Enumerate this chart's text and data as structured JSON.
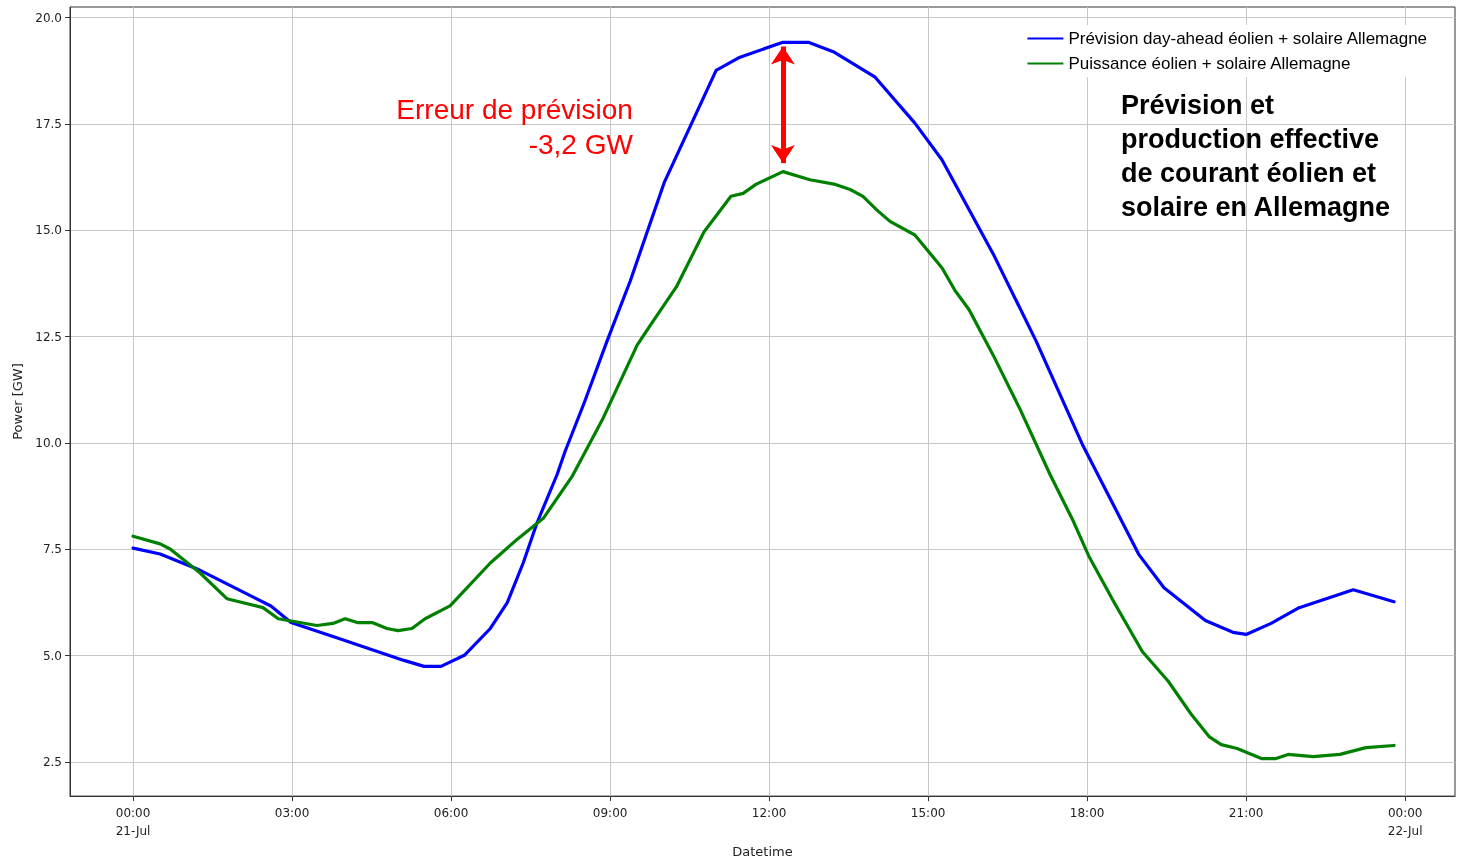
{
  "chart_data": {
    "type": "line",
    "title": "Prévision et production effective de courant éolien et solaire en Allemagne",
    "xlabel": "Datetime",
    "ylabel": "Power [GW]",
    "xlim": [
      -1.19,
      24.94
    ],
    "xticks": [
      {
        "value": 0,
        "label": "00:00\n21-Jul"
      },
      {
        "value": 3,
        "label": "03:00"
      },
      {
        "value": 6,
        "label": "06:00"
      },
      {
        "value": 9,
        "label": "09:00"
      },
      {
        "value": 12,
        "label": "12:00"
      },
      {
        "value": 15,
        "label": "15:00"
      },
      {
        "value": 18,
        "label": "18:00"
      },
      {
        "value": 21,
        "label": "21:00"
      },
      {
        "value": 24,
        "label": "00:00\n22-Jul"
      }
    ],
    "ylim": [
      1.7,
      20.25
    ],
    "yticks": [
      2.5,
      {
        "value": 5,
        "label": "5.0"
      },
      7.5,
      {
        "value": 10,
        "label": "10.0"
      },
      12.5,
      {
        "value": 15,
        "label": "15.0"
      },
      17.5,
      {
        "value": 20,
        "label": "20.0"
      }
    ],
    "grid": true,
    "legend": "top right",
    "marker": "none",
    "line_style": "solid",
    "annotations": [
      "Erreur de prévision\n-3,2 GW"
    ],
    "series": [
      {
        "name": "Prévision day-ahead éolien + solaire Allemagne",
        "color": "#0000ff",
        "x": [
          0,
          0.51,
          1.21,
          2.6,
          2.98,
          3.87,
          5.11,
          5.49,
          5.81,
          6.25,
          6.74,
          7.06,
          7.36,
          7.62,
          8.0,
          8.15,
          8.51,
          8.94,
          9.38,
          10.02,
          11.0,
          11.45,
          12.26,
          12.74,
          13.21,
          14.0,
          14.75,
          15.26,
          16.23,
          17.04,
          17.92,
          18.98,
          19.45,
          20.23,
          20.75,
          21.0,
          21.47,
          22.0,
          23.02,
          23.79
        ],
        "values": [
          7.53,
          7.39,
          7.04,
          6.17,
          5.78,
          5.41,
          4.89,
          4.75,
          4.75,
          5.01,
          5.64,
          6.25,
          7.18,
          8.12,
          9.26,
          9.8,
          10.94,
          12.39,
          13.81,
          16.12,
          18.76,
          19.07,
          19.42,
          19.42,
          19.2,
          18.6,
          17.52,
          16.66,
          14.44,
          12.39,
          9.94,
          7.37,
          6.6,
          5.83,
          5.55,
          5.5,
          5.76,
          6.13,
          6.55,
          6.27
        ]
      },
      {
        "name": "Puissance éolien + solaire Allemagne",
        "color": "#008000",
        "x": [
          0,
          0.51,
          0.7,
          1.26,
          1.77,
          2.45,
          2.74,
          3.47,
          3.77,
          4.0,
          4.23,
          4.51,
          4.79,
          5.0,
          5.26,
          5.51,
          5.98,
          6.74,
          7.25,
          7.74,
          8.28,
          8.87,
          9.51,
          9.77,
          10.25,
          10.77,
          11.28,
          11.51,
          11.75,
          12.26,
          12.77,
          13.25,
          13.53,
          13.77,
          14.04,
          14.28,
          14.75,
          15.26,
          15.51,
          15.77,
          16.23,
          16.74,
          17.3,
          17.74,
          18.04,
          18.51,
          19.04,
          19.53,
          19.96,
          20.3,
          20.53,
          20.83,
          21.3,
          21.55,
          21.79,
          22.26,
          22.77,
          23.26,
          23.79
        ],
        "values": [
          7.81,
          7.63,
          7.51,
          6.95,
          6.34,
          6.13,
          5.87,
          5.71,
          5.76,
          5.87,
          5.78,
          5.78,
          5.64,
          5.59,
          5.64,
          5.87,
          6.17,
          7.18,
          7.74,
          8.23,
          9.21,
          10.59,
          12.3,
          12.79,
          13.67,
          14.96,
          15.8,
          15.87,
          16.08,
          16.38,
          16.19,
          16.08,
          15.96,
          15.8,
          15.47,
          15.21,
          14.89,
          14.12,
          13.58,
          13.14,
          12.06,
          10.78,
          9.26,
          8.16,
          7.32,
          6.25,
          5.1,
          4.4,
          3.63,
          3.1,
          2.91,
          2.82,
          2.58,
          2.58,
          2.68,
          2.63,
          2.68,
          2.84,
          2.89
        ]
      }
    ]
  }
}
